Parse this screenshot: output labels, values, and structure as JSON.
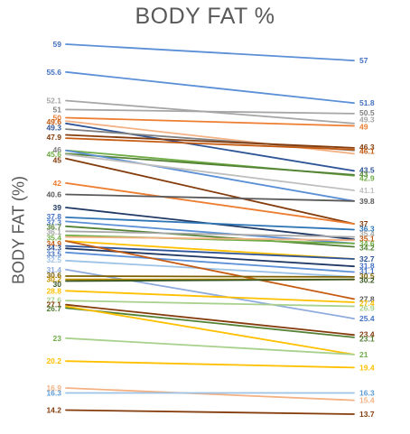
{
  "chart_data": {
    "type": "line",
    "title": "BODY FAT %",
    "ylabel": "BODY FAT (%)",
    "xlabel": "",
    "categories": [
      "",
      ""
    ],
    "ylim": [
      13,
      60
    ],
    "grid": false,
    "legend": "none",
    "series": [
      {
        "values": [
          59,
          57
        ],
        "color": "#5b8fd6"
      },
      {
        "values": [
          55.6,
          51.8
        ],
        "color": "#5b8fd6"
      },
      {
        "values": [
          52.1,
          49.3
        ],
        "color": "#a6a6a6"
      },
      {
        "values": [
          51,
          50.5
        ],
        "color": "#a6a6a6"
      },
      {
        "values": [
          50,
          49
        ],
        "color": "#ed7d31"
      },
      {
        "values": [
          49.6,
          45.6
        ],
        "color": "#f4b183"
      },
      {
        "values": [
          49.3,
          43.5
        ],
        "color": "#2f5597"
      },
      {
        "values": [
          48.6,
          46
        ],
        "color": "#7f7f7f"
      },
      {
        "values": [
          47.9,
          46.3
        ],
        "color": "#843c0c"
      },
      {
        "values": [
          47.5,
          46.1
        ],
        "color": "#c55a11"
      },
      {
        "values": [
          46,
          42.9
        ],
        "color": "#70ad47"
      },
      {
        "values": [
          45.6,
          43
        ],
        "color": "#548235"
      },
      {
        "values": [
          46,
          39.8
        ],
        "color": "#5b8fd6"
      },
      {
        "values": [
          45.5,
          41.1
        ],
        "color": "#bfbfbf"
      },
      {
        "values": [
          45,
          37
        ],
        "color": "#843c0c"
      },
      {
        "values": [
          42,
          37
        ],
        "color": "#ed7d31"
      },
      {
        "values": [
          40.6,
          39.8
        ],
        "color": "#595959"
      },
      {
        "values": [
          39,
          35.1
        ],
        "color": "#203864"
      },
      {
        "values": [
          37.8,
          36.3
        ],
        "color": "#2e75b6"
      },
      {
        "values": [
          37.3,
          34.6
        ],
        "color": "#5b8fd6"
      },
      {
        "values": [
          36.7,
          34.2
        ],
        "color": "#548235"
      },
      {
        "values": [
          36.1,
          35.4
        ],
        "color": "#a6a6a6"
      },
      {
        "values": [
          35.6,
          34.6
        ],
        "color": "#70ad47"
      },
      {
        "values": [
          35.4,
          35
        ],
        "color": "#f4b183"
      },
      {
        "values": [
          34.9,
          32.7
        ],
        "color": "#ffc000"
      },
      {
        "values": [
          34.3,
          32.7
        ],
        "color": "#2f5597"
      },
      {
        "values": [
          34,
          31.8
        ],
        "color": "#203864"
      },
      {
        "values": [
          33.5,
          31.1
        ],
        "color": "#5b8fd6"
      },
      {
        "values": [
          32.5,
          30.5
        ],
        "color": "#9dc3e6"
      },
      {
        "values": [
          34.9,
          27.8
        ],
        "color": "#c55a11"
      },
      {
        "values": [
          31.4,
          25.4
        ],
        "color": "#8faadc"
      },
      {
        "values": [
          30.6,
          30.5
        ],
        "color": "#7f6000"
      },
      {
        "values": [
          30.2,
          30.2
        ],
        "color": "#bf9000"
      },
      {
        "values": [
          30,
          30.2
        ],
        "color": "#375623"
      },
      {
        "values": [
          28.8,
          27.4
        ],
        "color": "#ffc000"
      },
      {
        "values": [
          27.6,
          26.9
        ],
        "color": "#a9d18e"
      },
      {
        "values": [
          27.1,
          23.4
        ],
        "color": "#843c0c"
      },
      {
        "values": [
          26.7,
          23.1
        ],
        "color": "#548235"
      },
      {
        "values": [
          26.9,
          21
        ],
        "color": "#ffc000"
      },
      {
        "values": [
          23,
          21
        ],
        "color": "#a9d18e"
      },
      {
        "values": [
          20.2,
          19.4
        ],
        "color": "#ffc000"
      },
      {
        "values": [
          16.9,
          15.4
        ],
        "color": "#f4b183"
      },
      {
        "values": [
          16.3,
          16.3
        ],
        "color": "#9dc3e6"
      },
      {
        "values": [
          14.2,
          13.7
        ],
        "color": "#843c0c"
      }
    ],
    "left_labels": [
      {
        "text": "59",
        "y": 59,
        "color": "#4472c4"
      },
      {
        "text": "55.6",
        "y": 55.6,
        "color": "#4472c4"
      },
      {
        "text": "52.1",
        "y": 52.1,
        "color": "#a6a6a6"
      },
      {
        "text": "51",
        "y": 51,
        "color": "#7f7f7f"
      },
      {
        "text": "50",
        "y": 50,
        "color": "#ed7d31"
      },
      {
        "text": "49.6",
        "y": 49.5,
        "color": "#c55a11"
      },
      {
        "text": "49.3",
        "y": 48.8,
        "color": "#2f5597"
      },
      {
        "text": "47.9",
        "y": 47.6,
        "color": "#843c0c"
      },
      {
        "text": "46",
        "y": 46.1,
        "color": "#7f7f7f"
      },
      {
        "text": "45.6",
        "y": 45.5,
        "color": "#70ad47"
      },
      {
        "text": "45",
        "y": 44.8,
        "color": "#843c0c"
      },
      {
        "text": "42",
        "y": 42,
        "color": "#ed7d31"
      },
      {
        "text": "40.6",
        "y": 40.6,
        "color": "#595959"
      },
      {
        "text": "39",
        "y": 39,
        "color": "#203864"
      },
      {
        "text": "37.8",
        "y": 37.9,
        "color": "#4472c4"
      },
      {
        "text": "37.3",
        "y": 37.2,
        "color": "#4472c4"
      },
      {
        "text": "36.7",
        "y": 36.6,
        "color": "#548235"
      },
      {
        "text": "36.1",
        "y": 36,
        "color": "#a6a6a6"
      },
      {
        "text": "35.4",
        "y": 35.3,
        "color": "#70ad47"
      },
      {
        "text": "34.9",
        "y": 34.6,
        "color": "#c55a11"
      },
      {
        "text": "34.3",
        "y": 34.1,
        "color": "#2f5597"
      },
      {
        "text": "33.5",
        "y": 33.3,
        "color": "#4472c4"
      },
      {
        "text": "32.5",
        "y": 32.6,
        "color": "#9dc3e6"
      },
      {
        "text": "31.4",
        "y": 31.4,
        "color": "#8faadc"
      },
      {
        "text": "30.6",
        "y": 30.7,
        "color": "#7f6000"
      },
      {
        "text": "30.2",
        "y": 30.2,
        "color": "#bf9000"
      },
      {
        "text": "30",
        "y": 29.6,
        "color": "#375623"
      },
      {
        "text": "28.8",
        "y": 28.8,
        "color": "#ffc000"
      },
      {
        "text": "27.6",
        "y": 27.7,
        "color": "#a9d18e"
      },
      {
        "text": "27.1",
        "y": 27.1,
        "color": "#843c0c"
      },
      {
        "text": "26.7",
        "y": 26.6,
        "color": "#548235"
      },
      {
        "text": "23",
        "y": 23,
        "color": "#70ad47"
      },
      {
        "text": "20.2",
        "y": 20.2,
        "color": "#ffc000"
      },
      {
        "text": "16.9",
        "y": 16.9,
        "color": "#f4b183"
      },
      {
        "text": "16.3",
        "y": 16.3,
        "color": "#5b9bd5"
      },
      {
        "text": "14.2",
        "y": 14.2,
        "color": "#843c0c"
      }
    ],
    "right_labels": [
      {
        "text": "57",
        "y": 57,
        "color": "#4472c4"
      },
      {
        "text": "51.8",
        "y": 51.8,
        "color": "#4472c4"
      },
      {
        "text": "50.5",
        "y": 50.6,
        "color": "#7f7f7f"
      },
      {
        "text": "49.3",
        "y": 49.8,
        "color": "#a6a6a6"
      },
      {
        "text": "49",
        "y": 48.9,
        "color": "#ed7d31"
      },
      {
        "text": "46.3",
        "y": 46.4,
        "color": "#843c0c"
      },
      {
        "text": "46.1",
        "y": 45.9,
        "color": "#c55a11"
      },
      {
        "text": "43.5",
        "y": 43.6,
        "color": "#2f5597"
      },
      {
        "text": "43",
        "y": 43.1,
        "color": "#548235"
      },
      {
        "text": "42.9",
        "y": 42.6,
        "color": "#70ad47"
      },
      {
        "text": "41.1",
        "y": 41.1,
        "color": "#bfbfbf"
      },
      {
        "text": "39.8",
        "y": 39.8,
        "color": "#595959"
      },
      {
        "text": "37",
        "y": 37,
        "color": "#843c0c"
      },
      {
        "text": "36.3",
        "y": 36.4,
        "color": "#2e75b6"
      },
      {
        "text": "35.4",
        "y": 35.8,
        "color": "#a6a6a6"
      },
      {
        "text": "35.1",
        "y": 35.2,
        "color": "#c55a11"
      },
      {
        "text": "34.6",
        "y": 34.6,
        "color": "#70ad47"
      },
      {
        "text": "34.2",
        "y": 34.1,
        "color": "#548235"
      },
      {
        "text": "32.7",
        "y": 32.7,
        "color": "#2f5597"
      },
      {
        "text": "31.8",
        "y": 31.9,
        "color": "#4472c4"
      },
      {
        "text": "31.1",
        "y": 31.2,
        "color": "#4472c4"
      },
      {
        "text": "30.5",
        "y": 30.6,
        "color": "#7f6000"
      },
      {
        "text": "30.2",
        "y": 30.1,
        "color": "#375623"
      },
      {
        "text": "27.8",
        "y": 27.8,
        "color": "#595959"
      },
      {
        "text": "27.4",
        "y": 27.3,
        "color": "#ffc000"
      },
      {
        "text": "26.9",
        "y": 26.7,
        "color": "#a9d18e"
      },
      {
        "text": "25.4",
        "y": 25.4,
        "color": "#4472c4"
      },
      {
        "text": "23.4",
        "y": 23.5,
        "color": "#843c0c"
      },
      {
        "text": "23.1",
        "y": 22.9,
        "color": "#548235"
      },
      {
        "text": "21",
        "y": 21,
        "color": "#70ad47"
      },
      {
        "text": "19.4",
        "y": 19.4,
        "color": "#ffc000"
      },
      {
        "text": "16.3",
        "y": 16.3,
        "color": "#5b9bd5"
      },
      {
        "text": "15.4",
        "y": 15.4,
        "color": "#f4b183"
      },
      {
        "text": "13.7",
        "y": 13.7,
        "color": "#843c0c"
      }
    ]
  }
}
